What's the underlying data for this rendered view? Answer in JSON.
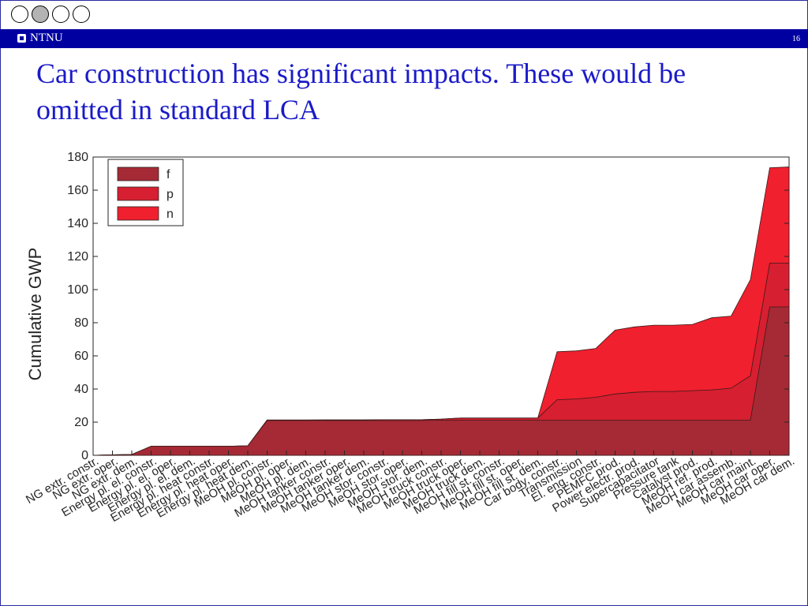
{
  "header": {
    "brand": "NTNU",
    "page_number": "16",
    "nav_circles": [
      {
        "active": false
      },
      {
        "active": true
      },
      {
        "active": false
      },
      {
        "active": false
      }
    ]
  },
  "slide": {
    "title": "Car construction has significant impacts. These would be omitted in standard LCA"
  },
  "chart_data": {
    "type": "area",
    "ylabel": "Cumulative GWP",
    "ylim": [
      0,
      180
    ],
    "yticks": [
      0,
      20,
      40,
      60,
      80,
      100,
      120,
      140,
      160,
      180
    ],
    "categories": [
      "NG extr. constr.",
      "NG extr. oper.",
      "NG extr. dem.",
      "Energy pl. el. constr.",
      "Energy pl. el. oper.",
      "Energy pl. el. dem.",
      "Energy pl. heat constr.",
      "Energy pl. heat oper.",
      "Energy pl. heat dem.",
      "MeOH pl. constr.",
      "MeOH pl. oper.",
      "MeOH pl. dem.",
      "MeOH tanker constr.",
      "MeOH tanker oper.",
      "MeOH tanker dem.",
      "MeOH stor. constr.",
      "MeOH stor. oper.",
      "MeOH stor. dem.",
      "MeOH truck constr.",
      "MeOH truck oper.",
      "MeOH truck dem.",
      "MeOH fill st. constr.",
      "MeOH fill st. oper.",
      "MeOH fill st. dem.",
      "Car body, constr.",
      "Transmission",
      "El. eng. constr.",
      "PEMFC prod.",
      "Power electr. prod.",
      "Supercapacitator",
      "Pressure tank",
      "Catalyst prod.",
      "MeOH ref. prod.",
      "MeOH car assemb.",
      "MeOH car maint.",
      "MeOH car oper.",
      "MeOH car dem."
    ],
    "series": [
      {
        "name": "f",
        "color": "#a52a35",
        "values": [
          0,
          0.3,
          0.5,
          5.5,
          5.5,
          5.5,
          5.5,
          5.5,
          5.7,
          21,
          21,
          21,
          21,
          21,
          21,
          21,
          21,
          21,
          21.2,
          21.2,
          21.2,
          21.2,
          21.2,
          21.2,
          21.2,
          21.2,
          21.2,
          21.2,
          21.2,
          21.2,
          21.2,
          21.2,
          21.2,
          21.2,
          21.2,
          89.5,
          89.5
        ]
      },
      {
        "name": "p",
        "color": "#d61f30",
        "values": [
          0,
          0.3,
          0.5,
          5.5,
          5.5,
          5.5,
          5.5,
          5.5,
          5.7,
          21.3,
          21.3,
          21.3,
          21.4,
          21.4,
          21.4,
          21.5,
          21.5,
          21.5,
          21.8,
          22.5,
          22.5,
          22.5,
          22.5,
          22.5,
          33.5,
          34,
          35,
          37,
          38,
          38.5,
          38.5,
          39,
          39.5,
          40.5,
          48,
          116,
          116
        ]
      },
      {
        "name": "n",
        "color": "#f0202e",
        "values": [
          0,
          0.3,
          0.5,
          5.5,
          5.5,
          5.5,
          5.5,
          5.5,
          5.7,
          21.3,
          21.3,
          21.3,
          21.4,
          21.4,
          21.4,
          21.5,
          21.5,
          21.5,
          21.8,
          22.5,
          22.5,
          22.5,
          22.5,
          22.5,
          62.5,
          63,
          64.5,
          75.5,
          77.5,
          78.5,
          78.5,
          79,
          83,
          84,
          106,
          173.5,
          174
        ]
      }
    ],
    "legend_position": "top-left"
  }
}
